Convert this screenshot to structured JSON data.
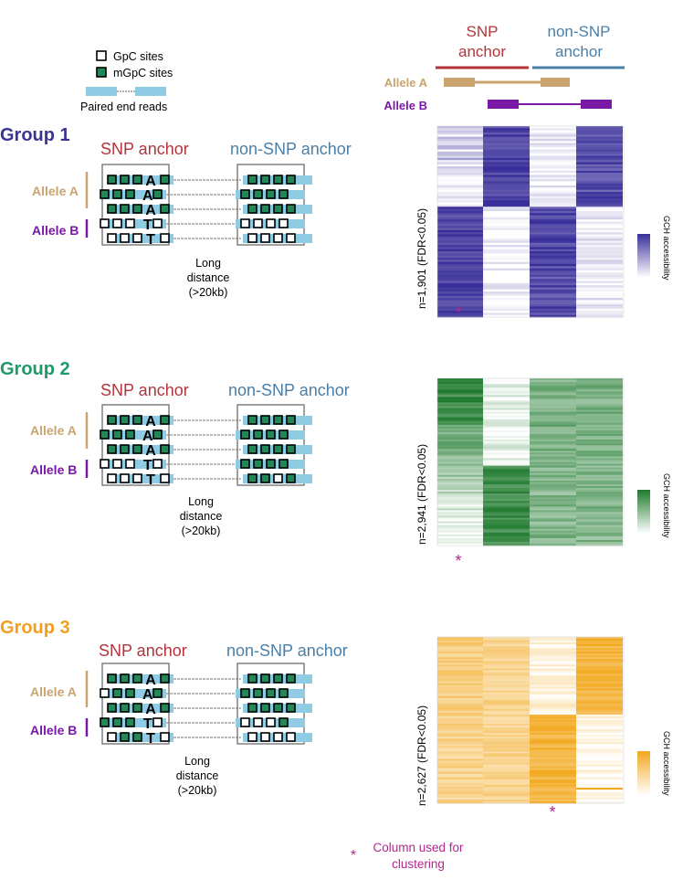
{
  "legend": {
    "gpc": "GpC sites",
    "mgpc": "mGpC sites",
    "reads": "Paired end reads"
  },
  "header": {
    "snp_line1": "SNP",
    "snp_line2": "anchor",
    "nonsnp_line1": "non-SNP",
    "nonsnp_line2": "anchor",
    "allele_a": "Allele A",
    "allele_b": "Allele B"
  },
  "groups": [
    {
      "title": "Group 1",
      "snp_anchor": "SNP anchor",
      "nonsnp_anchor": "non-SNP anchor",
      "allele_a": "Allele A",
      "allele_b": "Allele B",
      "bases": [
        "A",
        "A",
        "A",
        "T",
        "T"
      ],
      "dist_1": "Long",
      "dist_2": "distance",
      "dist_3": "(>20kb)",
      "n_label": "n=1,901 (FDR<0.05)",
      "scale_label": "GCH accessibility",
      "color": "#3a2f9a"
    },
    {
      "title": "Group 2",
      "snp_anchor": "SNP anchor",
      "nonsnp_anchor": "non-SNP anchor",
      "allele_a": "Allele A",
      "allele_b": "Allele B",
      "bases": [
        "A",
        "A",
        "A",
        "T",
        "T"
      ],
      "dist_1": "Long",
      "dist_2": "distance",
      "dist_3": "(>20kb)",
      "n_label": "n=2,941 (FDR<0.05)",
      "scale_label": "GCH accessibility",
      "color": "#1f7a2e"
    },
    {
      "title": "Group 3",
      "snp_anchor": "SNP anchor",
      "nonsnp_anchor": "non-SNP anchor",
      "allele_a": "Allele A",
      "allele_b": "Allele B",
      "bases": [
        "A",
        "A",
        "A",
        "T",
        "T"
      ],
      "dist_1": "Long",
      "dist_2": "distance",
      "dist_3": "(>20kb)",
      "n_label": "n=2,627 (FDR<0.05)",
      "scale_label": "GCH accessibility",
      "color": "#f2a81d"
    }
  ],
  "footer": {
    "star": "*",
    "line1": "Column used for",
    "line2": "clustering"
  },
  "colors": {
    "snp": "#b3343a",
    "nonsnp": "#4a7fa8",
    "allele_a": "#c9a46e",
    "allele_b": "#7a18a6",
    "read": "#8fcbe3",
    "mgpc": "#1f8a55",
    "group_title_1": "#3b3590",
    "group_title_2": "#1e9a6a",
    "group_title_3": "#f0a020",
    "star": "#b0288c"
  }
}
